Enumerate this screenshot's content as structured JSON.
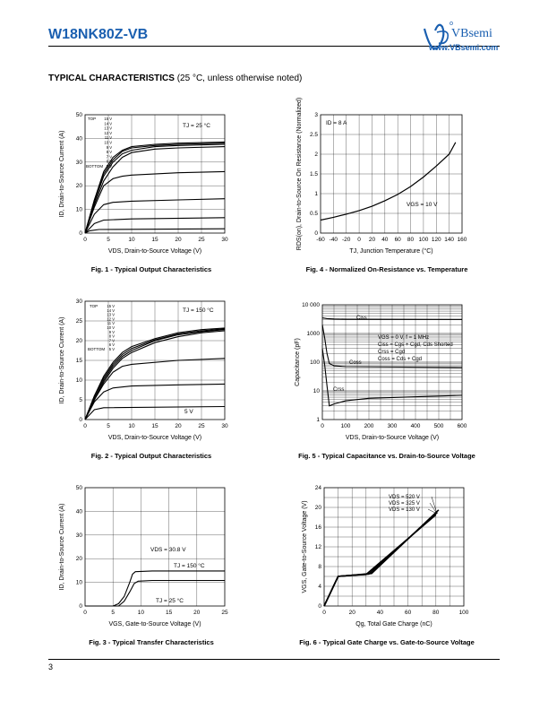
{
  "header": {
    "part_number": "W18NK80Z-VB",
    "brand": "VBsemi",
    "url": "www.VBsemi.com"
  },
  "section": {
    "title": "TYPICAL CHARACTERISTICS",
    "subtitle": "(25 °C, unless otherwise noted)"
  },
  "page_number": "3",
  "chart_data": [
    {
      "id": "fig1",
      "type": "line",
      "caption": "Fig. 1 - Typical Output Characteristics",
      "xlabel": "VDS, Drain-to-Source Voltage (V)",
      "ylabel": "ID, Drain-to-Source Current (A)",
      "xlim": [
        0,
        30
      ],
      "ylim": [
        0,
        50
      ],
      "xticks": [
        0,
        5,
        10,
        15,
        20,
        25,
        30
      ],
      "yticks": [
        0,
        10,
        20,
        30,
        40,
        50
      ],
      "annotation": "TJ = 25 °C",
      "legend_top": "TOP",
      "legend_bottom": "BOTTOM",
      "legend_values": [
        "15 V",
        "14 V",
        "13 V",
        "12 V",
        "11 V",
        "10 V",
        "9 V",
        "8 V",
        "7 V",
        "6 V",
        "5 V"
      ],
      "grid": true,
      "series": [
        {
          "values": [
            [
              0,
              0
            ],
            [
              2,
              14
            ],
            [
              4,
              26
            ],
            [
              6,
              32
            ],
            [
              8,
              35
            ],
            [
              10,
              36.5
            ],
            [
              15,
              37.5
            ],
            [
              20,
              38
            ],
            [
              30,
              38.5
            ]
          ]
        },
        {
          "values": [
            [
              0,
              0
            ],
            [
              2,
              14
            ],
            [
              4,
              25
            ],
            [
              6,
              31
            ],
            [
              8,
              34.5
            ],
            [
              10,
              36
            ],
            [
              15,
              37
            ],
            [
              20,
              37.5
            ],
            [
              30,
              38
            ]
          ]
        },
        {
          "values": [
            [
              0,
              0
            ],
            [
              2,
              13
            ],
            [
              4,
              24
            ],
            [
              6,
              30
            ],
            [
              8,
              33.5
            ],
            [
              10,
              35
            ],
            [
              15,
              36.5
            ],
            [
              20,
              37
            ],
            [
              30,
              37.5
            ]
          ]
        },
        {
          "values": [
            [
              0,
              0
            ],
            [
              2,
              12
            ],
            [
              4,
              22
            ],
            [
              6,
              28
            ],
            [
              8,
              32
            ],
            [
              10,
              34
            ],
            [
              15,
              35.5
            ],
            [
              20,
              36
            ],
            [
              30,
              36.5
            ]
          ]
        },
        {
          "values": [
            [
              0,
              0
            ],
            [
              2,
              11
            ],
            [
              4,
              20
            ],
            [
              6,
              23
            ],
            [
              8,
              24
            ],
            [
              10,
              24.5
            ],
            [
              20,
              25.5
            ],
            [
              30,
              26
            ]
          ]
        },
        {
          "values": [
            [
              0,
              0
            ],
            [
              2,
              8
            ],
            [
              4,
              12
            ],
            [
              6,
              13
            ],
            [
              10,
              13.5
            ],
            [
              20,
              14
            ],
            [
              30,
              14.5
            ]
          ]
        },
        {
          "values": [
            [
              0,
              0
            ],
            [
              2,
              4
            ],
            [
              4,
              5.5
            ],
            [
              10,
              6
            ],
            [
              30,
              6.5
            ]
          ]
        },
        {
          "values": [
            [
              0,
              0
            ],
            [
              1,
              1
            ],
            [
              3,
              1.5
            ],
            [
              30,
              1.8
            ]
          ]
        }
      ]
    },
    {
      "id": "fig2",
      "type": "line",
      "caption": "Fig. 2 - Typical Output Characteristics",
      "xlabel": "VDS, Drain-to-Source Voltage (V)",
      "ylabel": "ID, Drain-to-Source Current (A)",
      "xlim": [
        0,
        30
      ],
      "ylim": [
        0,
        30
      ],
      "xticks": [
        0,
        5,
        10,
        15,
        20,
        25,
        30
      ],
      "yticks": [
        0,
        5,
        10,
        15,
        20,
        25,
        30
      ],
      "annotation": "TJ = 150 °C",
      "label_5v": "5 V",
      "legend_top": "TOP",
      "legend_bottom": "BOTTOM",
      "legend_values": [
        "15 V",
        "14 V",
        "13 V",
        "12 V",
        "11 V",
        "10 V",
        "9 V",
        "8 V",
        "7 V",
        "6 V",
        "5 V"
      ],
      "grid": true,
      "series": [
        {
          "values": [
            [
              0,
              0
            ],
            [
              2,
              6
            ],
            [
              4,
              11
            ],
            [
              6,
              14.5
            ],
            [
              8,
              17
            ],
            [
              10,
              18.5
            ],
            [
              15,
              20.5
            ],
            [
              20,
              22
            ],
            [
              25,
              22.8
            ],
            [
              30,
              23.2
            ]
          ]
        },
        {
          "values": [
            [
              0,
              0
            ],
            [
              2,
              6
            ],
            [
              4,
              10.5
            ],
            [
              6,
              14
            ],
            [
              8,
              16.5
            ],
            [
              10,
              18
            ],
            [
              15,
              20.2
            ],
            [
              20,
              21.7
            ],
            [
              25,
              22.5
            ],
            [
              30,
              23
            ]
          ]
        },
        {
          "values": [
            [
              0,
              0
            ],
            [
              2,
              5.5
            ],
            [
              4,
              10
            ],
            [
              6,
              13.5
            ],
            [
              8,
              16
            ],
            [
              10,
              17.5
            ],
            [
              15,
              20
            ],
            [
              20,
              21.5
            ],
            [
              25,
              22.3
            ],
            [
              30,
              22.8
            ]
          ]
        },
        {
          "values": [
            [
              0,
              0
            ],
            [
              2,
              5
            ],
            [
              4,
              9.5
            ],
            [
              6,
              13
            ],
            [
              8,
              15.5
            ],
            [
              10,
              17
            ],
            [
              15,
              19.5
            ],
            [
              20,
              21
            ],
            [
              25,
              22
            ],
            [
              30,
              22.5
            ]
          ]
        },
        {
          "values": [
            [
              0,
              0
            ],
            [
              2,
              5
            ],
            [
              4,
              9
            ],
            [
              6,
              12
            ],
            [
              8,
              13.5
            ],
            [
              10,
              14
            ],
            [
              20,
              15
            ],
            [
              30,
              15.5
            ]
          ]
        },
        {
          "values": [
            [
              0,
              0
            ],
            [
              2,
              4.5
            ],
            [
              4,
              7
            ],
            [
              6,
              8
            ],
            [
              10,
              8.5
            ],
            [
              20,
              8.8
            ],
            [
              30,
              9
            ]
          ]
        },
        {
          "values": [
            [
              0,
              0
            ],
            [
              2,
              2.5
            ],
            [
              4,
              3
            ],
            [
              30,
              3.3
            ]
          ]
        }
      ]
    },
    {
      "id": "fig3",
      "type": "line",
      "caption": "Fig. 3 - Typical Transfer Characteristics",
      "xlabel": "VGS, Gate-to-Source Voltage (V)",
      "ylabel": "ID, Drain-to-Source Current (A)",
      "xlim": [
        0,
        25
      ],
      "ylim": [
        0,
        50
      ],
      "xticks": [
        0,
        5,
        10,
        15,
        20,
        25
      ],
      "yticks": [
        0,
        10,
        20,
        30,
        40,
        50
      ],
      "annotation": "VDS = 30.8 V",
      "grid": true,
      "series": [
        {
          "name": "TJ = 150 °C",
          "values": [
            [
              0,
              0
            ],
            [
              5,
              0
            ],
            [
              6,
              1
            ],
            [
              7,
              4
            ],
            [
              8,
              10
            ],
            [
              8.5,
              13.5
            ],
            [
              9,
              14.5
            ],
            [
              12,
              14.8
            ],
            [
              25,
              14.8
            ]
          ]
        },
        {
          "name": "TJ = 25 °C",
          "values": [
            [
              0,
              0
            ],
            [
              6,
              0
            ],
            [
              7,
              2
            ],
            [
              8,
              6
            ],
            [
              8.8,
              9.5
            ],
            [
              9.5,
              10.5
            ],
            [
              12,
              10.8
            ],
            [
              25,
              10.8
            ]
          ]
        }
      ]
    },
    {
      "id": "fig4",
      "type": "line",
      "caption": "Fig. 4 - Normalized On-Resistance vs. Temperature",
      "xlabel": "TJ, Junction Temperature (°C)",
      "ylabel": "RDS(on), Drain-to-Source On Resistance (Normalized)",
      "xlim": [
        -60,
        160
      ],
      "ylim": [
        0,
        3
      ],
      "xticks": [
        -60,
        -40,
        -20,
        0,
        20,
        40,
        60,
        80,
        100,
        120,
        140,
        160
      ],
      "yticks": [
        0,
        0.5,
        1,
        1.5,
        2,
        2.5,
        3
      ],
      "annotations": [
        "ID = 8 A",
        "VGS = 10 V"
      ],
      "grid": true,
      "series": [
        {
          "values": [
            [
              -60,
              0.33
            ],
            [
              -40,
              0.4
            ],
            [
              -20,
              0.48
            ],
            [
              0,
              0.57
            ],
            [
              20,
              0.68
            ],
            [
              40,
              0.82
            ],
            [
              60,
              0.98
            ],
            [
              80,
              1.18
            ],
            [
              100,
              1.42
            ],
            [
              120,
              1.7
            ],
            [
              140,
              2.0
            ],
            [
              150,
              2.3
            ]
          ]
        }
      ]
    },
    {
      "id": "fig5",
      "type": "line",
      "caption": "Fig. 5 - Typical Capacitance vs. Drain-to-Source Voltage",
      "xlabel": "VDS, Drain-to-Source Voltage (V)",
      "ylabel": "Capacitance (pF)",
      "xlim": [
        0,
        600
      ],
      "ylim": [
        1,
        10000
      ],
      "y_scale": "log",
      "xticks": [
        0,
        100,
        200,
        300,
        400,
        500,
        600
      ],
      "yticks": [
        "1",
        "10",
        "100",
        "1000",
        "10 000"
      ],
      "legend_lines": [
        "VGS = 0 V, f = 1 MHz",
        "Ciss = Cgs + Cgd, Cds Shorted",
        "Crss = Cgd",
        "Coss = Cds + Cgd"
      ],
      "grid": true,
      "series": [
        {
          "name": "Ciss",
          "values": [
            [
              0,
              3500
            ],
            [
              20,
              3300
            ],
            [
              50,
              3200
            ],
            [
              100,
              3150
            ],
            [
              600,
              3100
            ]
          ]
        },
        {
          "name": "Coss",
          "values": [
            [
              0,
              2000
            ],
            [
              10,
              700
            ],
            [
              20,
              200
            ],
            [
              30,
              90
            ],
            [
              50,
              75
            ],
            [
              100,
              70
            ],
            [
              600,
              65
            ]
          ]
        },
        {
          "name": "Crss",
          "values": [
            [
              0,
              300
            ],
            [
              10,
              80
            ],
            [
              20,
              15
            ],
            [
              30,
              3
            ],
            [
              50,
              3.5
            ],
            [
              100,
              4.5
            ],
            [
              200,
              5.5
            ],
            [
              600,
              7
            ]
          ]
        }
      ]
    },
    {
      "id": "fig6",
      "type": "line",
      "caption": "Fig. 6 - Typical Gate Charge vs. Gate-to-Source Voltage",
      "xlabel": "Qg, Total Gate Charge (nC)",
      "ylabel": "VGS, Gate-to-Source Voltage (V)",
      "xlim": [
        0,
        100
      ],
      "ylim": [
        0,
        24
      ],
      "xticks": [
        0,
        20,
        40,
        60,
        80,
        100
      ],
      "yticks": [
        0,
        4,
        8,
        12,
        16,
        20,
        24
      ],
      "legend_lines": [
        "VDS = 520 V",
        "VDS = 325 V",
        "VDS = 130 V"
      ],
      "grid": true,
      "series": [
        {
          "name": "VDS = 520 V",
          "values": [
            [
              0,
              0
            ],
            [
              10,
              6
            ],
            [
              18,
              6.2
            ],
            [
              34,
              6.6
            ],
            [
              82,
              19.5
            ]
          ]
        },
        {
          "name": "VDS = 325 V",
          "values": [
            [
              0,
              0
            ],
            [
              10,
              6
            ],
            [
              18,
              6.2
            ],
            [
              32,
              6.5
            ],
            [
              81,
              19
            ]
          ]
        },
        {
          "name": "VDS = 130 V",
          "values": [
            [
              0,
              0
            ],
            [
              10,
              6
            ],
            [
              18,
              6.2
            ],
            [
              30,
              6.4
            ],
            [
              80,
              18.5
            ]
          ]
        }
      ]
    }
  ]
}
